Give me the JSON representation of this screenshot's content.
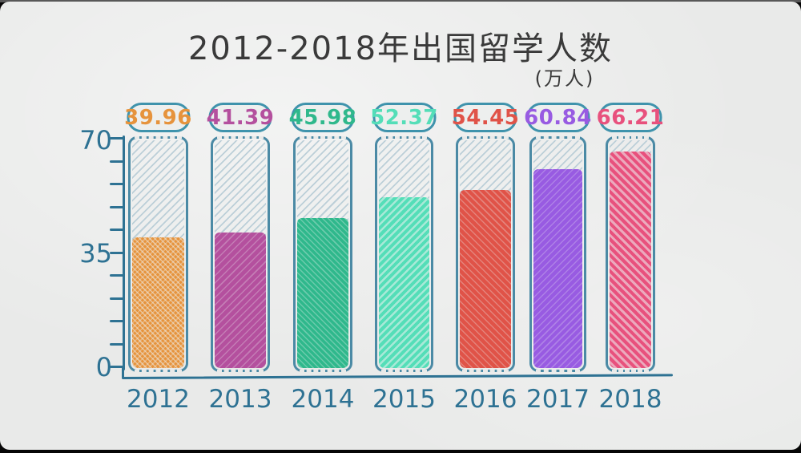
{
  "chart_data": {
    "type": "bar",
    "title": "2012-2018年出国留学人数",
    "unit_label": "(万人)",
    "categories": [
      "2012",
      "2013",
      "2014",
      "2015",
      "2016",
      "2017",
      "2018"
    ],
    "values": [
      39.96,
      41.39,
      45.98,
      52.37,
      54.45,
      60.84,
      66.21
    ],
    "value_labels": [
      "39.96",
      "41.39",
      "45.98",
      "52.37",
      "54.45",
      "60.84",
      "66.21"
    ],
    "bar_colors": [
      "#E6933C",
      "#B4509E",
      "#2FB88C",
      "#54DEB8",
      "#E05348",
      "#985BE2",
      "#E8517D"
    ],
    "ylim": [
      0,
      70
    ],
    "ytick_labels": [
      "70",
      "35",
      "0"
    ],
    "minor_tick_count": 11,
    "grid": "off",
    "legend": "none",
    "style": "hand-drawn sketch, bars shown as outlined tubes with light-blue hatched empty space above colored scribble fill",
    "colors": {
      "paper_background": "#e9eae9",
      "axis": "#2e7293",
      "tube_outline": "#4b8aa5",
      "badge_outline": "#3f93ac",
      "empty_hatch": "#bccfd8",
      "title_text": "#3a3a3a"
    }
  }
}
